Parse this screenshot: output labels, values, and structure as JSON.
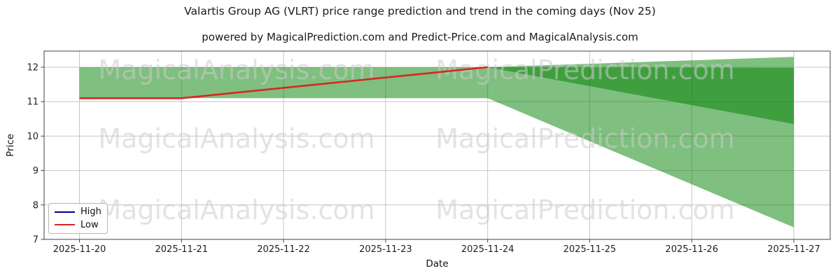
{
  "header": {
    "title": "Valartis Group AG (VLRT) price range prediction and trend in the coming days (Nov 25)",
    "subtitle": "powered by MagicalPrediction.com and Predict-Price.com and MagicalAnalysis.com"
  },
  "chart_data": {
    "type": "area",
    "title": "Valartis Group AG (VLRT) price range prediction and trend in the coming days (Nov 25)",
    "subtitle": "powered by MagicalPrediction.com and Predict-Price.com and MagicalAnalysis.com",
    "xlabel": "Date",
    "ylabel": "Price",
    "x_categories": [
      "2025-11-20",
      "2025-11-21",
      "2025-11-22",
      "2025-11-23",
      "2025-11-24",
      "2025-11-25",
      "2025-11-26",
      "2025-11-27"
    ],
    "yticks": [
      7,
      8,
      9,
      10,
      11,
      12
    ],
    "ylim": [
      7,
      12.5
    ],
    "grid": true,
    "legend": {
      "position": "lower left",
      "entries": [
        {
          "label": "High",
          "color": "#00008b"
        },
        {
          "label": "Low",
          "color": "#d92525"
        }
      ]
    },
    "series": [
      {
        "name": "High",
        "type": "line",
        "color": "#00008b",
        "points": []
      },
      {
        "name": "Low",
        "type": "line",
        "color": "#d92525",
        "points": [
          {
            "x": "2025-11-20",
            "y": 11.1
          },
          {
            "x": "2025-11-21",
            "y": 11.1
          },
          {
            "x": "2025-11-24",
            "y": 12.0
          }
        ]
      }
    ],
    "bands": [
      {
        "name": "low-prediction-band",
        "fill": "#008000",
        "opacity": 0.5,
        "points": [
          {
            "x": "2025-11-20",
            "top": 12.0,
            "bottom": 11.1
          },
          {
            "x": "2025-11-24",
            "top": 12.0,
            "bottom": 11.1
          },
          {
            "x": "2025-11-27",
            "top": 11.98,
            "bottom": 7.35
          }
        ]
      },
      {
        "name": "high-prediction-band",
        "fill": "#008000",
        "opacity": 0.5,
        "points": [
          {
            "x": "2025-11-24",
            "top": 12.0,
            "bottom": 12.0
          },
          {
            "x": "2025-11-27",
            "top": 12.3,
            "bottom": 10.35
          }
        ]
      }
    ],
    "watermarks": [
      "MagicalAnalysis.com",
      "MagicalPrediction.com"
    ]
  }
}
